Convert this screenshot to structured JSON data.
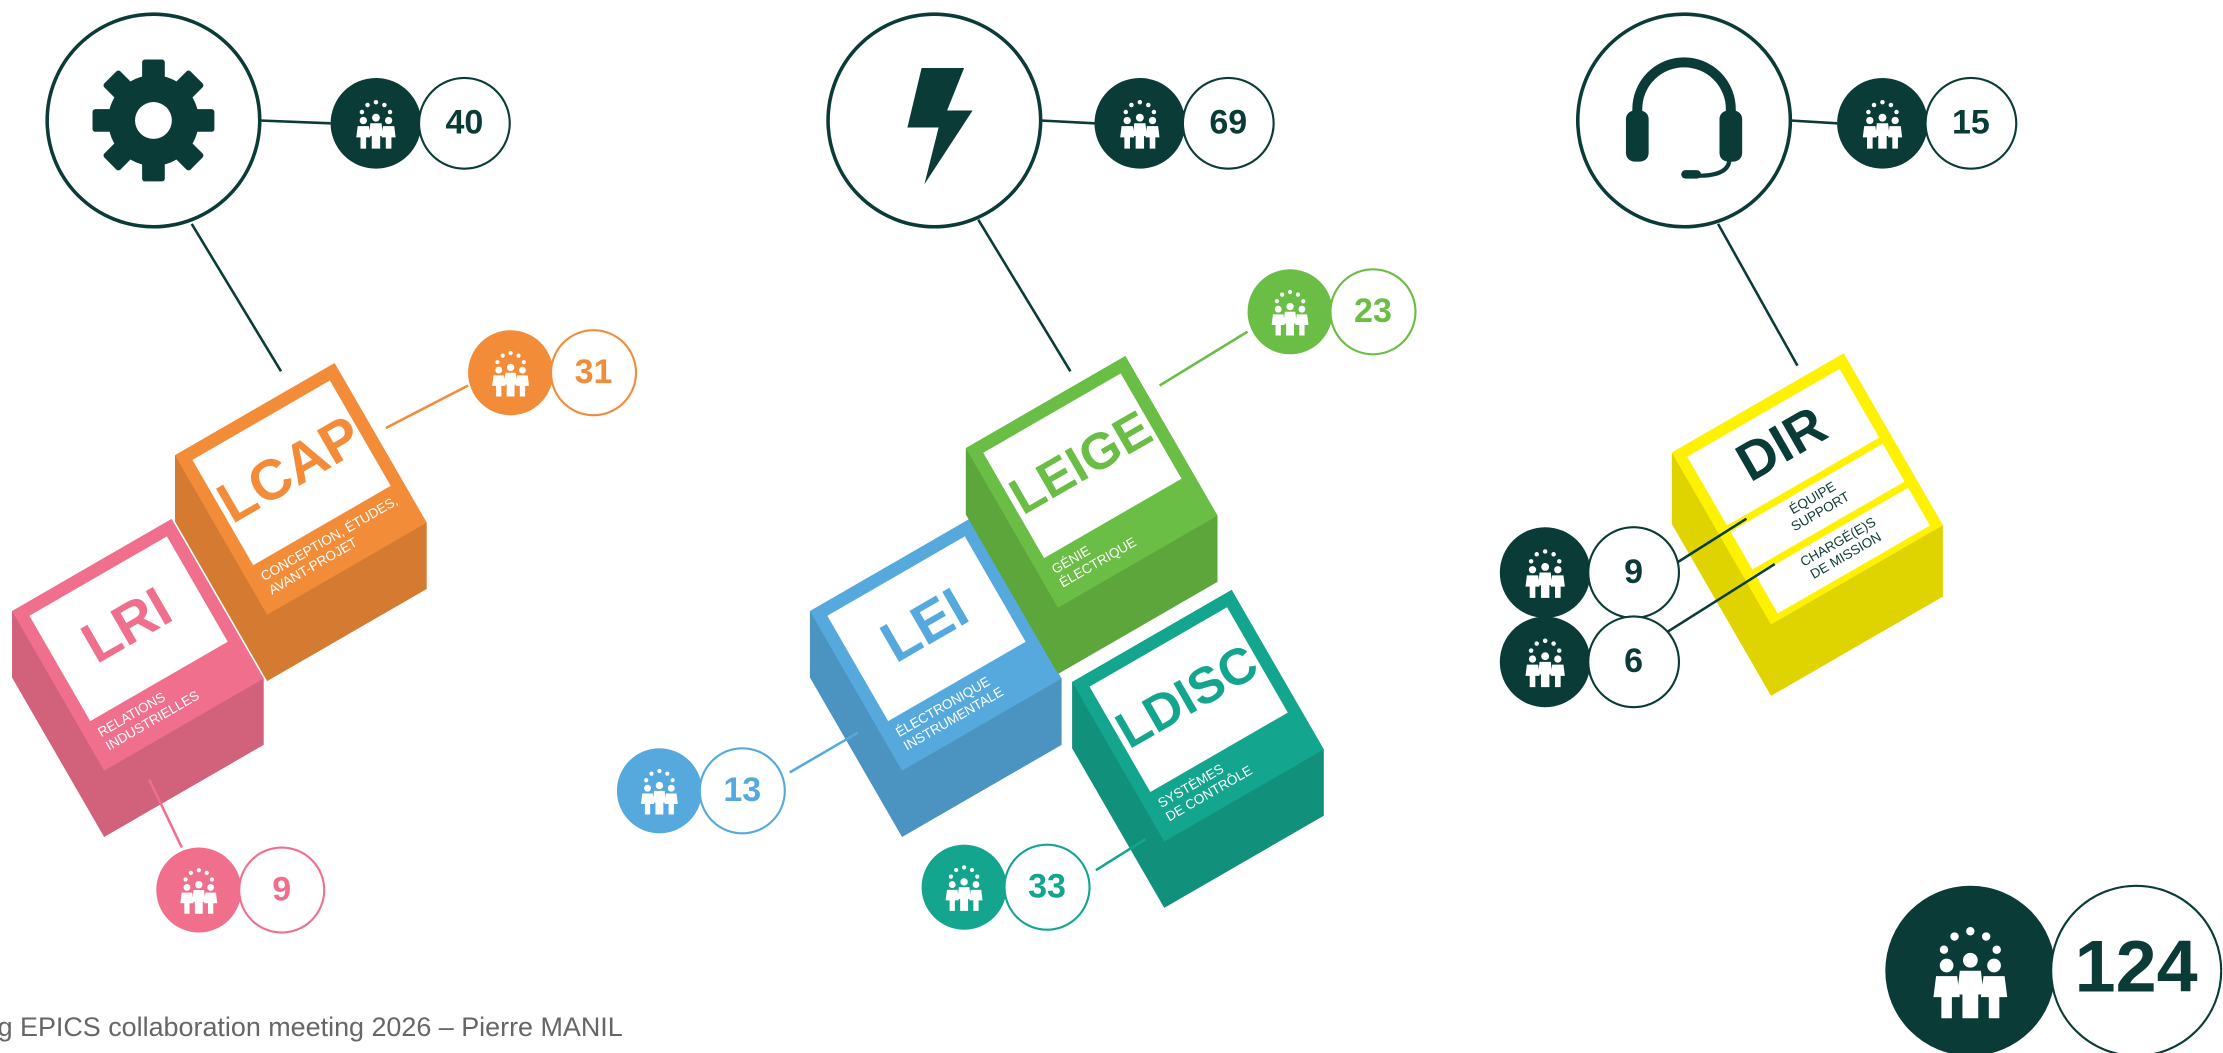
{
  "groups": [
    {
      "count": 40,
      "teams": [
        {
          "code": "LCAP",
          "subtitle": [
            "CONCEPTION, ÉTUDES,",
            "AVANT-PROJET"
          ],
          "count": 31
        },
        {
          "code": "LRI",
          "subtitle": [
            "RELATIONS",
            "INDUSTRIELLES"
          ],
          "count": 9
        }
      ]
    },
    {
      "count": 69,
      "teams": [
        {
          "code": "LEIGE",
          "subtitle": [
            "GÉNIE",
            "ÉLECTRIQUE"
          ],
          "count": 23
        },
        {
          "code": "LEI",
          "subtitle": [
            "ÉLECTRONIQUE",
            "INSTRUMENTALE"
          ],
          "count": 13
        },
        {
          "code": "LDISC",
          "subtitle": [
            "SYSTÈMES",
            "DE CONTRÔLE"
          ],
          "count": 33
        }
      ]
    },
    {
      "count": 15,
      "teams": [
        {
          "code": "DIR",
          "units": [
            {
              "label": [
                "ÉQUIPE",
                "SUPPORT"
              ],
              "count": 9
            },
            {
              "label": [
                "CHARGÉ(E)S",
                "DE MISSION"
              ],
              "count": 6
            }
          ]
        }
      ]
    }
  ],
  "total": 124,
  "footer": "g EPICS collaboration meeting 2026 – Pierre MANIL"
}
